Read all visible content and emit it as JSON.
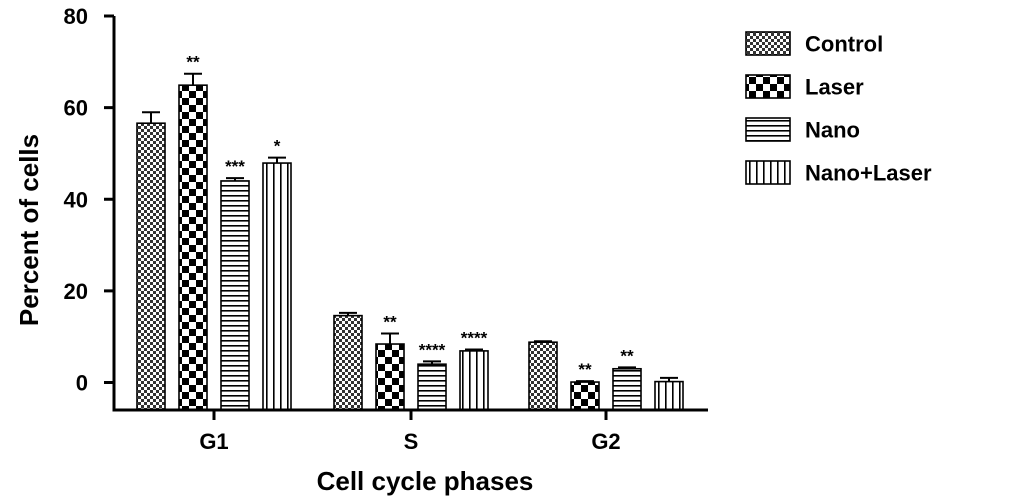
{
  "chart_data": {
    "type": "bar",
    "title": "",
    "xlabel": "Cell cycle phases",
    "ylabel": "Percent of cells",
    "categories": [
      "G1",
      "S",
      "G2"
    ],
    "ylim": [
      -6,
      80
    ],
    "yticks": [
      {
        "value": 80,
        "label": "80"
      },
      {
        "value": 60,
        "label": "60"
      },
      {
        "value": 40,
        "label": "40"
      },
      {
        "value": 20,
        "label": "20"
      },
      {
        "value": 0,
        "label": "0"
      }
    ],
    "legend_position": "top-right",
    "series": [
      {
        "name": "Control",
        "pattern": "checker-small",
        "values": [
          56.6,
          14.6,
          8.8
        ],
        "errors": [
          2.4,
          0.6,
          0.2
        ],
        "sig": [
          "",
          "",
          ""
        ]
      },
      {
        "name": "Laser",
        "pattern": "checker-large",
        "values": [
          64.9,
          8.4,
          0.1
        ],
        "errors": [
          2.5,
          2.3,
          0.2
        ],
        "sig": [
          "**",
          "**",
          "**"
        ]
      },
      {
        "name": "Nano",
        "pattern": "horizontal-lines",
        "values": [
          44.0,
          4.0,
          3.0
        ],
        "errors": [
          0.6,
          0.6,
          0.3
        ],
        "sig": [
          "***",
          "****",
          "**"
        ]
      },
      {
        "name": "Nano+Laser",
        "pattern": "vertical-lines",
        "values": [
          47.9,
          6.9,
          0.2
        ],
        "errors": [
          1.2,
          0.3,
          0.8
        ],
        "sig": [
          "*",
          "****",
          ""
        ]
      }
    ]
  }
}
